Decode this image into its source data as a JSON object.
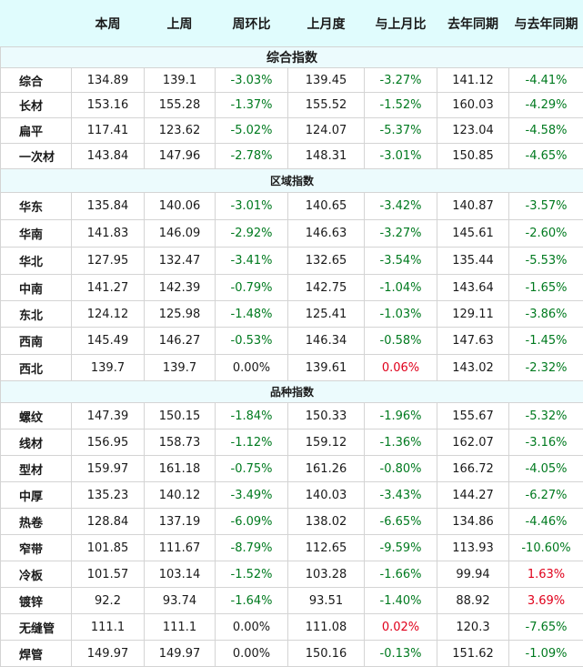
{
  "headers": [
    "",
    "本周",
    "上周",
    "周环比",
    "上月度",
    "与上月比",
    "去年同期",
    "与去年同期"
  ],
  "sections": [
    {
      "title": "综合指数",
      "rows": [
        {
          "name": "综合",
          "this_week": "134.89",
          "last_week": "139.1",
          "wow": "-3.03%",
          "last_month": "139.45",
          "mom": "-3.27%",
          "last_year": "141.12",
          "yoy": "-4.41%"
        },
        {
          "name": "长材",
          "this_week": "153.16",
          "last_week": "155.28",
          "wow": "-1.37%",
          "last_month": "155.52",
          "mom": "-1.52%",
          "last_year": "160.03",
          "yoy": "-4.29%"
        },
        {
          "name": "扁平",
          "this_week": "117.41",
          "last_week": "123.62",
          "wow": "-5.02%",
          "last_month": "124.07",
          "mom": "-5.37%",
          "last_year": "123.04",
          "yoy": "-4.58%"
        },
        {
          "name": "一次材",
          "this_week": "143.84",
          "last_week": "147.96",
          "wow": "-2.78%",
          "last_month": "148.31",
          "mom": "-3.01%",
          "last_year": "150.85",
          "yoy": "-4.65%"
        }
      ]
    },
    {
      "title": "区域指数",
      "rows": [
        {
          "name": "华东",
          "this_week": "135.84",
          "last_week": "140.06",
          "wow": "-3.01%",
          "last_month": "140.65",
          "mom": "-3.42%",
          "last_year": "140.87",
          "yoy": "-3.57%"
        },
        {
          "name": "华南",
          "this_week": "141.83",
          "last_week": "146.09",
          "wow": "-2.92%",
          "last_month": "146.63",
          "mom": "-3.27%",
          "last_year": "145.61",
          "yoy": "-2.60%"
        },
        {
          "name": "华北",
          "this_week": "127.95",
          "last_week": "132.47",
          "wow": "-3.41%",
          "last_month": "132.65",
          "mom": "-3.54%",
          "last_year": "135.44",
          "yoy": "-5.53%"
        },
        {
          "name": "中南",
          "this_week": "141.27",
          "last_week": "142.39",
          "wow": "-0.79%",
          "last_month": "142.75",
          "mom": "-1.04%",
          "last_year": "143.64",
          "yoy": "-1.65%"
        },
        {
          "name": "东北",
          "this_week": "124.12",
          "last_week": "125.98",
          "wow": "-1.48%",
          "last_month": "125.41",
          "mom": "-1.03%",
          "last_year": "129.11",
          "yoy": "-3.86%"
        },
        {
          "name": "西南",
          "this_week": "145.49",
          "last_week": "146.27",
          "wow": "-0.53%",
          "last_month": "146.34",
          "mom": "-0.58%",
          "last_year": "147.63",
          "yoy": "-1.45%"
        },
        {
          "name": "西北",
          "this_week": "139.7",
          "last_week": "139.7",
          "wow": "0.00%",
          "last_month": "139.61",
          "mom": "0.06%",
          "last_year": "143.02",
          "yoy": "-2.32%"
        }
      ]
    },
    {
      "title": "品种指数",
      "rows": [
        {
          "name": "螺纹",
          "this_week": "147.39",
          "last_week": "150.15",
          "wow": "-1.84%",
          "last_month": "150.33",
          "mom": "-1.96%",
          "last_year": "155.67",
          "yoy": "-5.32%"
        },
        {
          "name": "线材",
          "this_week": "156.95",
          "last_week": "158.73",
          "wow": "-1.12%",
          "last_month": "159.12",
          "mom": "-1.36%",
          "last_year": "162.07",
          "yoy": "-3.16%"
        },
        {
          "name": "型材",
          "this_week": "159.97",
          "last_week": "161.18",
          "wow": "-0.75%",
          "last_month": "161.26",
          "mom": "-0.80%",
          "last_year": "166.72",
          "yoy": "-4.05%"
        },
        {
          "name": "中厚",
          "this_week": "135.23",
          "last_week": "140.12",
          "wow": "-3.49%",
          "last_month": "140.03",
          "mom": "-3.43%",
          "last_year": "144.27",
          "yoy": "-6.27%"
        },
        {
          "name": "热卷",
          "this_week": "128.84",
          "last_week": "137.19",
          "wow": "-6.09%",
          "last_month": "138.02",
          "mom": "-6.65%",
          "last_year": "134.86",
          "yoy": "-4.46%"
        },
        {
          "name": "窄带",
          "this_week": "101.85",
          "last_week": "111.67",
          "wow": "-8.79%",
          "last_month": "112.65",
          "mom": "-9.59%",
          "last_year": "113.93",
          "yoy": "-10.60%"
        },
        {
          "name": "冷板",
          "this_week": "101.57",
          "last_week": "103.14",
          "wow": "-1.52%",
          "last_month": "103.28",
          "mom": "-1.66%",
          "last_year": "99.94",
          "yoy": "1.63%"
        },
        {
          "name": "镀锌",
          "this_week": "92.2",
          "last_week": "93.74",
          "wow": "-1.64%",
          "last_month": "93.51",
          "mom": "-1.40%",
          "last_year": "88.92",
          "yoy": "3.69%"
        },
        {
          "name": "无缝管",
          "this_week": "111.1",
          "last_week": "111.1",
          "wow": "0.00%",
          "last_month": "111.08",
          "mom": "0.02%",
          "last_year": "120.3",
          "yoy": "-7.65%"
        },
        {
          "name": "焊管",
          "this_week": "149.97",
          "last_week": "149.97",
          "wow": "0.00%",
          "last_month": "150.16",
          "mom": "-0.13%",
          "last_year": "151.62",
          "yoy": "-1.09%"
        }
      ]
    }
  ],
  "colors": {
    "header_bg": "#e0fcfd",
    "section_bg": "#ecfbfd",
    "negative": "#007a1f",
    "positive": "#e0001b",
    "neutral": "#1a1a1a",
    "grid": "#d4d4d4"
  }
}
